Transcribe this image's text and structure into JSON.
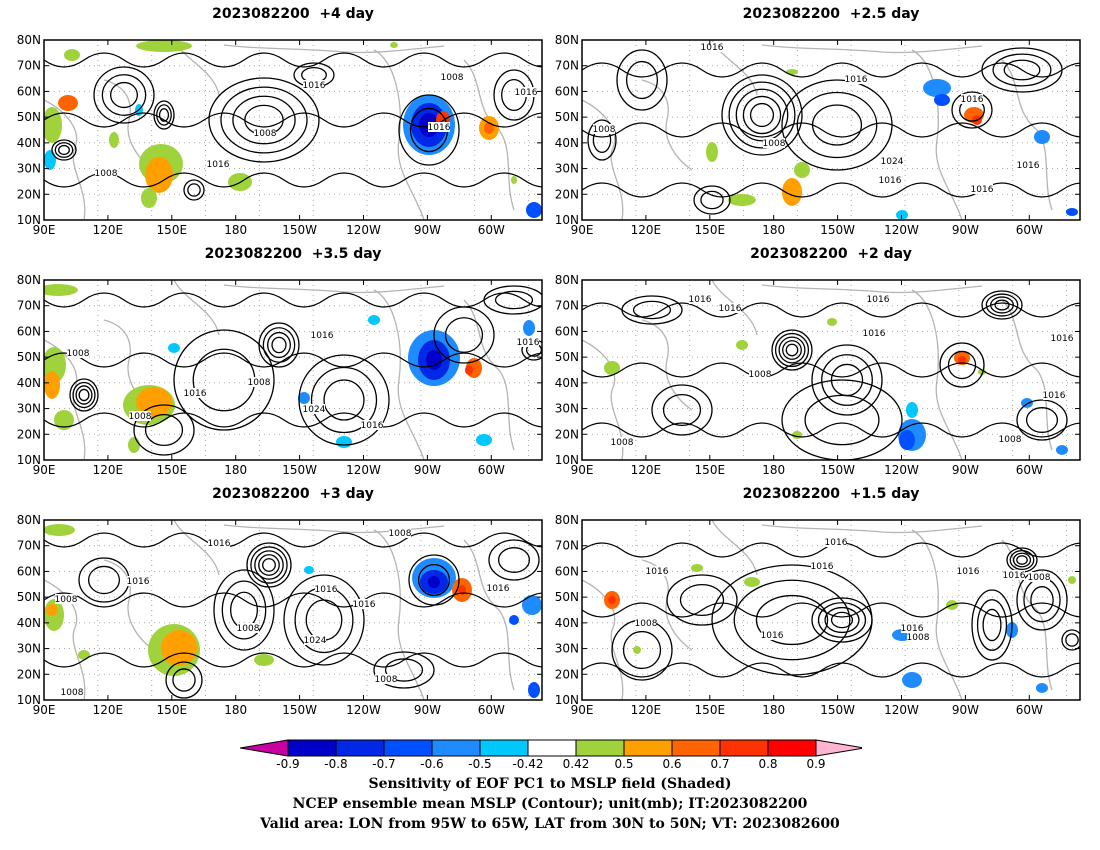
{
  "panels": [
    {
      "title": "2023082200  +4 day"
    },
    {
      "title": "2023082200  +2.5 day"
    },
    {
      "title": "2023082200  +3.5 day"
    },
    {
      "title": "2023082200  +2 day"
    },
    {
      "title": "2023082200  +3 day"
    },
    {
      "title": "2023082200  +1.5 day"
    }
  ],
  "axes": {
    "lon_ticks": [
      "90E",
      "120E",
      "150E",
      "180",
      "150W",
      "120W",
      "90W",
      "60W"
    ],
    "lat_ticks": [
      "80N",
      "70N",
      "60N",
      "50N",
      "40N",
      "30N",
      "20N",
      "10N"
    ]
  },
  "contour_label": "1016",
  "contour_labels": [
    "1008",
    "1016",
    "1024"
  ],
  "colorbar": {
    "labels": [
      "-0.9",
      "-0.8",
      "-0.7",
      "-0.6",
      "-0.5",
      "-0.42",
      "0.42",
      "0.5",
      "0.6",
      "0.7",
      "0.8",
      "0.9"
    ],
    "colors": [
      "#c800a0",
      "#0000c8",
      "#0028e6",
      "#0050ff",
      "#1e8cff",
      "#00c8ff",
      "#ffffff",
      "#a0d23c",
      "#ffa000",
      "#ff6400",
      "#ff3200",
      "#ff0000",
      "#ffb4d2"
    ]
  },
  "caption": {
    "line1": "Sensitivity of EOF PC1 to MSLP field (Shaded)",
    "line2": "NCEP ensemble mean MSLP (Contour); unit(mb); IT:2023082200",
    "line3": "Valid area: LON from 95W to 65W, LAT from 30N to 50N; VT: 2023082600"
  }
}
